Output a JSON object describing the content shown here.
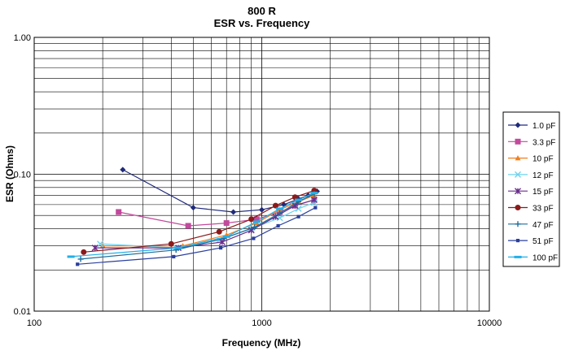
{
  "chart_data": {
    "type": "line",
    "title": "800 R",
    "subtitle": "ESR vs. Frequency",
    "xlabel": "Frequency (MHz)",
    "ylabel": "ESR (Ohms)",
    "xscale": "log",
    "yscale": "log",
    "xlim": [
      100,
      10000
    ],
    "ylim": [
      0.01,
      1.0
    ],
    "xticks": [
      "100",
      "1000",
      "10000"
    ],
    "yticks": [
      "0.01",
      "0.10",
      "1.00"
    ],
    "grid": true,
    "legend_position": "right",
    "series": [
      {
        "name": "1.0 pF",
        "color": "#1f2a7a",
        "marker": "diamond",
        "points": [
          [
            245,
            0.108
          ],
          [
            500,
            0.057
          ],
          [
            750,
            0.053
          ],
          [
            1000,
            0.055
          ],
          [
            1250,
            0.06
          ],
          [
            1450,
            0.066
          ],
          [
            1600,
            0.07
          ],
          [
            1750,
            0.075
          ]
        ]
      },
      {
        "name": "3.3 pF",
        "color": "#c2499c",
        "marker": "square",
        "points": [
          [
            235,
            0.053
          ],
          [
            475,
            0.042
          ],
          [
            700,
            0.044
          ],
          [
            950,
            0.047
          ],
          [
            1200,
            0.053
          ],
          [
            1400,
            0.059
          ],
          [
            1700,
            0.065
          ]
        ]
      },
      {
        "name": "10 pF",
        "color": "#f07f1f",
        "marker": "triangle",
        "points": [
          [
            200,
            0.03
          ],
          [
            450,
            0.03
          ],
          [
            700,
            0.036
          ],
          [
            950,
            0.044
          ],
          [
            1200,
            0.055
          ],
          [
            1450,
            0.063
          ],
          [
            1700,
            0.07
          ]
        ]
      },
      {
        "name": "12 pF",
        "color": "#6fd3ee",
        "marker": "x",
        "points": [
          [
            195,
            0.031
          ],
          [
            420,
            0.029
          ],
          [
            650,
            0.033
          ],
          [
            900,
            0.04
          ],
          [
            1200,
            0.048
          ],
          [
            1450,
            0.056
          ],
          [
            1700,
            0.062
          ]
        ]
      },
      {
        "name": "15 pF",
        "color": "#6a2d8b",
        "marker": "star",
        "points": [
          [
            185,
            0.029
          ],
          [
            430,
            0.029
          ],
          [
            670,
            0.032
          ],
          [
            900,
            0.039
          ],
          [
            1150,
            0.049
          ],
          [
            1400,
            0.059
          ],
          [
            1700,
            0.065
          ]
        ]
      },
      {
        "name": "33 pF",
        "color": "#8b1a1a",
        "marker": "circle",
        "points": [
          [
            165,
            0.027
          ],
          [
            400,
            0.031
          ],
          [
            650,
            0.038
          ],
          [
            900,
            0.047
          ],
          [
            1150,
            0.059
          ],
          [
            1400,
            0.068
          ],
          [
            1700,
            0.076
          ]
        ]
      },
      {
        "name": "47 pF",
        "color": "#1e6e9c",
        "marker": "plus",
        "points": [
          [
            160,
            0.024
          ],
          [
            420,
            0.028
          ],
          [
            680,
            0.034
          ],
          [
            930,
            0.041
          ],
          [
            1200,
            0.052
          ],
          [
            1450,
            0.063
          ],
          [
            1700,
            0.072
          ]
        ]
      },
      {
        "name": "51 pF",
        "color": "#2a3f9e",
        "marker": "smallsquare",
        "points": [
          [
            155,
            0.022
          ],
          [
            410,
            0.025
          ],
          [
            660,
            0.029
          ],
          [
            920,
            0.034
          ],
          [
            1180,
            0.042
          ],
          [
            1450,
            0.049
          ],
          [
            1720,
            0.057
          ]
        ]
      },
      {
        "name": "100 pF",
        "color": "#22b0e8",
        "marker": "dash",
        "points": [
          [
            145,
            0.025
          ],
          [
            430,
            0.029
          ],
          [
            700,
            0.035
          ],
          [
            950,
            0.045
          ],
          [
            1200,
            0.056
          ],
          [
            1450,
            0.065
          ],
          [
            1700,
            0.073
          ]
        ]
      }
    ]
  }
}
